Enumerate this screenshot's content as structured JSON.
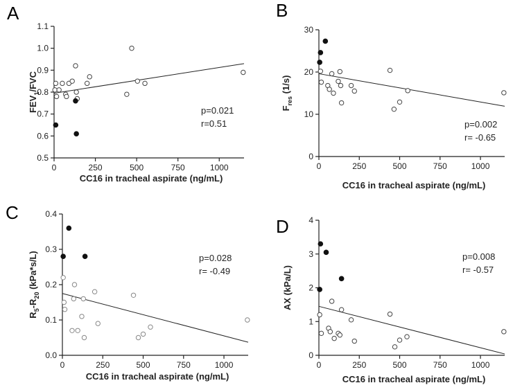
{
  "chart_data": [
    {
      "type": "scatter",
      "panel": "A",
      "xlabel": "CC16 in tracheal aspirate (ng/mL)",
      "ylabel_main": "FEV",
      "ylabel_sub": "1",
      "ylabel_tail": "/FVC",
      "xlim": [
        0,
        1150
      ],
      "ylim": [
        0.5,
        1.1
      ],
      "xticks": [
        "0",
        "250",
        "500",
        "750",
        "1000"
      ],
      "xtick_values": [
        0,
        250,
        500,
        750,
        1000
      ],
      "yticks": [
        "0.5",
        "0.6",
        "0.7",
        "0.8",
        "0.9",
        "1.0",
        "1.1"
      ],
      "ytick_values": [
        0.5,
        0.6,
        0.7,
        0.8,
        0.9,
        1.0,
        1.1
      ],
      "p_text": "p=0.021",
      "r_text": "r=0.51",
      "trend": [
        [
          0,
          0.795
        ],
        [
          1150,
          0.93
        ]
      ],
      "open_points": [
        [
          5,
          0.81
        ],
        [
          10,
          0.84
        ],
        [
          15,
          0.78
        ],
        [
          30,
          0.81
        ],
        [
          50,
          0.84
        ],
        [
          70,
          0.79
        ],
        [
          75,
          0.78
        ],
        [
          90,
          0.84
        ],
        [
          110,
          0.85
        ],
        [
          130,
          0.92
        ],
        [
          135,
          0.8
        ],
        [
          140,
          0.77
        ],
        [
          200,
          0.84
        ],
        [
          215,
          0.87
        ],
        [
          440,
          0.79
        ],
        [
          470,
          1.0
        ],
        [
          505,
          0.85
        ],
        [
          550,
          0.84
        ],
        [
          1145,
          0.89
        ]
      ],
      "filled_points": [
        [
          10,
          0.65
        ],
        [
          130,
          0.76
        ],
        [
          135,
          0.61
        ]
      ]
    },
    {
      "type": "scatter",
      "panel": "B",
      "xlabel": "CC16 in tracheal aspirate (ng/mL)",
      "ylabel_main": "F",
      "ylabel_sub": "res",
      "ylabel_tail": " (1/s)",
      "xlim": [
        0,
        1150
      ],
      "ylim": [
        0,
        30
      ],
      "xticks": [
        "0",
        "250",
        "500",
        "750",
        "1000"
      ],
      "xtick_values": [
        0,
        250,
        500,
        750,
        1000
      ],
      "yticks": [
        "0",
        "10",
        "20",
        "30"
      ],
      "ytick_values": [
        0,
        10,
        20,
        30
      ],
      "p_text": "p=0.002",
      "r_text": "r= -0.65",
      "trend": [
        [
          0,
          19.6
        ],
        [
          1150,
          11.9
        ]
      ],
      "open_points": [
        [
          10,
          20.2
        ],
        [
          15,
          17.6
        ],
        [
          55,
          16.8
        ],
        [
          65,
          15.9
        ],
        [
          80,
          19.6
        ],
        [
          90,
          15.0
        ],
        [
          120,
          17.8
        ],
        [
          130,
          20.1
        ],
        [
          135,
          16.8
        ],
        [
          140,
          12.7
        ],
        [
          200,
          16.8
        ],
        [
          220,
          15.5
        ],
        [
          440,
          20.4
        ],
        [
          465,
          11.2
        ],
        [
          500,
          12.9
        ],
        [
          550,
          15.6
        ],
        [
          1145,
          15.1
        ]
      ],
      "filled_points": [
        [
          5,
          22.3
        ],
        [
          10,
          24.6
        ],
        [
          40,
          27.3
        ]
      ]
    },
    {
      "type": "scatter",
      "panel": "C",
      "xlabel": "CC16 in tracheal aspirate (ng/mL)",
      "ylabel_main": "R",
      "ylabel_sub": "5",
      "ylabel_mid": "-R",
      "ylabel_sub2": "20",
      "ylabel_tail": " (kPa*s/L)",
      "xlim": [
        0,
        1150
      ],
      "ylim": [
        0,
        0.4
      ],
      "xticks": [
        "0",
        "250",
        "500",
        "750",
        "1000"
      ],
      "xtick_values": [
        0,
        250,
        500,
        750,
        1000
      ],
      "yticks": [
        "0.0",
        "0.1",
        "0.2",
        "0.3",
        "0.4"
      ],
      "ytick_values": [
        0,
        0.1,
        0.2,
        0.3,
        0.4
      ],
      "p_text": "p=0.028",
      "r_text": "r= -0.49",
      "trend": [
        [
          0,
          0.175
        ],
        [
          1150,
          0.037
        ]
      ],
      "open_points": [
        [
          5,
          0.22
        ],
        [
          10,
          0.15
        ],
        [
          15,
          0.13
        ],
        [
          60,
          0.07
        ],
        [
          70,
          0.16
        ],
        [
          75,
          0.2
        ],
        [
          95,
          0.07
        ],
        [
          120,
          0.11
        ],
        [
          130,
          0.16
        ],
        [
          135,
          0.05
        ],
        [
          200,
          0.18
        ],
        [
          220,
          0.09
        ],
        [
          440,
          0.17
        ],
        [
          470,
          0.05
        ],
        [
          500,
          0.06
        ],
        [
          545,
          0.08
        ],
        [
          1145,
          0.1
        ]
      ],
      "filled_points": [
        [
          5,
          0.28
        ],
        [
          40,
          0.36
        ],
        [
          140,
          0.28
        ]
      ]
    },
    {
      "type": "scatter",
      "panel": "D",
      "xlabel": "CC16 in tracheal aspirate (ng/mL)",
      "ylabel_main": "AX",
      "ylabel_tail": " (kPa/L)",
      "xlim": [
        0,
        1150
      ],
      "ylim": [
        0,
        4
      ],
      "xticks": [
        "0",
        "250",
        "500",
        "750",
        "1000"
      ],
      "xtick_values": [
        0,
        250,
        500,
        750,
        1000
      ],
      "yticks": [
        "0",
        "1",
        "2",
        "3",
        "4"
      ],
      "ytick_values": [
        0,
        1,
        2,
        3,
        4
      ],
      "p_text": "p=0.008",
      "r_text": "r= -0.57",
      "trend": [
        [
          0,
          1.45
        ],
        [
          1150,
          0.04
        ]
      ],
      "open_points": [
        [
          5,
          1.2
        ],
        [
          15,
          0.65
        ],
        [
          60,
          0.8
        ],
        [
          70,
          0.7
        ],
        [
          80,
          1.6
        ],
        [
          95,
          0.5
        ],
        [
          120,
          0.65
        ],
        [
          130,
          0.6
        ],
        [
          140,
          1.35
        ],
        [
          200,
          1.05
        ],
        [
          220,
          0.42
        ],
        [
          440,
          1.22
        ],
        [
          470,
          0.25
        ],
        [
          500,
          0.45
        ],
        [
          545,
          0.55
        ],
        [
          1145,
          0.7
        ]
      ],
      "filled_points": [
        [
          5,
          1.95
        ],
        [
          10,
          3.3
        ],
        [
          45,
          3.05
        ],
        [
          140,
          2.27
        ]
      ]
    }
  ]
}
